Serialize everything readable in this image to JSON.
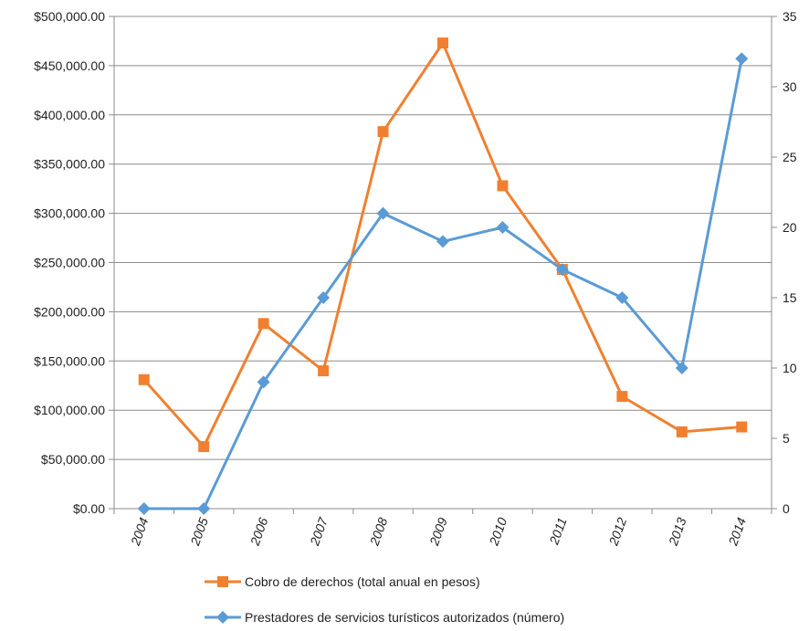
{
  "chart_data": {
    "type": "line",
    "title": "",
    "categories": [
      "2004",
      "2005",
      "2006",
      "2007",
      "2008",
      "2009",
      "2010",
      "2011",
      "2012",
      "2013",
      "2014"
    ],
    "y_left": {
      "label": "",
      "ylim": [
        0,
        500000
      ],
      "ticks": [
        "$0.00",
        "$50,000.00",
        "$100,000.00",
        "$150,000.00",
        "$200,000.00",
        "$250,000.00",
        "$300,000.00",
        "$350,000.00",
        "$400,000.00",
        "$450,000.00",
        "$500,000.00"
      ]
    },
    "y_right": {
      "label": "",
      "ylim": [
        0,
        35
      ],
      "ticks": [
        "0",
        "5",
        "10",
        "15",
        "20",
        "25",
        "30",
        "35"
      ]
    },
    "grid": "horizontal",
    "legend_position": "bottom",
    "series": [
      {
        "name": "Cobro de derechos (total anual en pesos)",
        "axis": "left",
        "marker": "square",
        "color": "#f08030",
        "values": [
          131000,
          63000,
          188000,
          140000,
          383000,
          473000,
          328000,
          243000,
          114000,
          78000,
          83000
        ]
      },
      {
        "name": "Prestadores de servicios turísticos autorizados (número)",
        "axis": "right",
        "marker": "diamond",
        "color": "#5b9bd5",
        "values": [
          0,
          0,
          9,
          15,
          21,
          19,
          20,
          17,
          15,
          10,
          32
        ]
      }
    ]
  }
}
